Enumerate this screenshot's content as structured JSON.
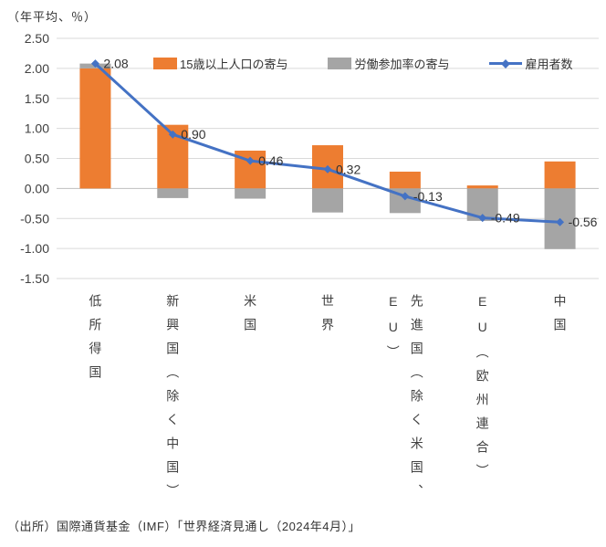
{
  "chart": {
    "unit_note": "（年平均、％）",
    "source": "（出所）国際通貨基金（IMF）「世界経済見通し（2024年4月）」"
  },
  "legend": {
    "items": [
      {
        "label": "15歳以上人口の寄与",
        "marker": "bar-swatch",
        "color": "#ED7D31"
      },
      {
        "label": "労働参加率の寄与",
        "marker": "bar-swatch",
        "color": "#A5A5A5"
      },
      {
        "label": "雇用者数",
        "marker": "line-diamond",
        "color": "#4472C4"
      }
    ]
  },
  "chart_data": {
    "type": "bar",
    "subtype": "stacked-bars-with-line-overlay",
    "title": "",
    "unit_note": "（年平均、％）",
    "categories": [
      "低所得国",
      "新興国（除く中国）",
      "米国",
      "世界",
      "先進国（除く米国、EU）",
      "EU（欧州連合）",
      "中国"
    ],
    "series": [
      {
        "name": "15歳以上人口の寄与",
        "type": "bar",
        "color": "#ED7D31",
        "values": [
          2.0,
          1.06,
          0.63,
          0.72,
          0.28,
          0.05,
          0.45
        ]
      },
      {
        "name": "労働参加率の寄与",
        "type": "bar",
        "color": "#A5A5A5",
        "values": [
          0.08,
          -0.16,
          -0.17,
          -0.4,
          -0.41,
          -0.54,
          -1.01
        ]
      },
      {
        "name": "雇用者数",
        "type": "line",
        "color": "#4472C4",
        "values": [
          2.08,
          0.9,
          0.46,
          0.32,
          -0.13,
          -0.49,
          -0.56
        ],
        "data_labels": [
          "2.08",
          "0.90",
          "0.46",
          "0.32",
          "-0.13",
          "-0.49",
          "-0.56"
        ]
      }
    ],
    "ylim": [
      -1.5,
      2.5
    ],
    "ytick_step": 0.5,
    "ytick_labels": [
      "2.50",
      "2.00",
      "1.50",
      "1.00",
      "0.50",
      "0.00",
      "-0.50",
      "-1.00",
      "-1.50"
    ],
    "grid": true,
    "legend_position": "top-inside",
    "colors": {
      "grid_line": "#D9D9D9",
      "zero_line": "#BFBFBF",
      "tick_text": "#404040",
      "data_label_text": "#333333"
    }
  }
}
